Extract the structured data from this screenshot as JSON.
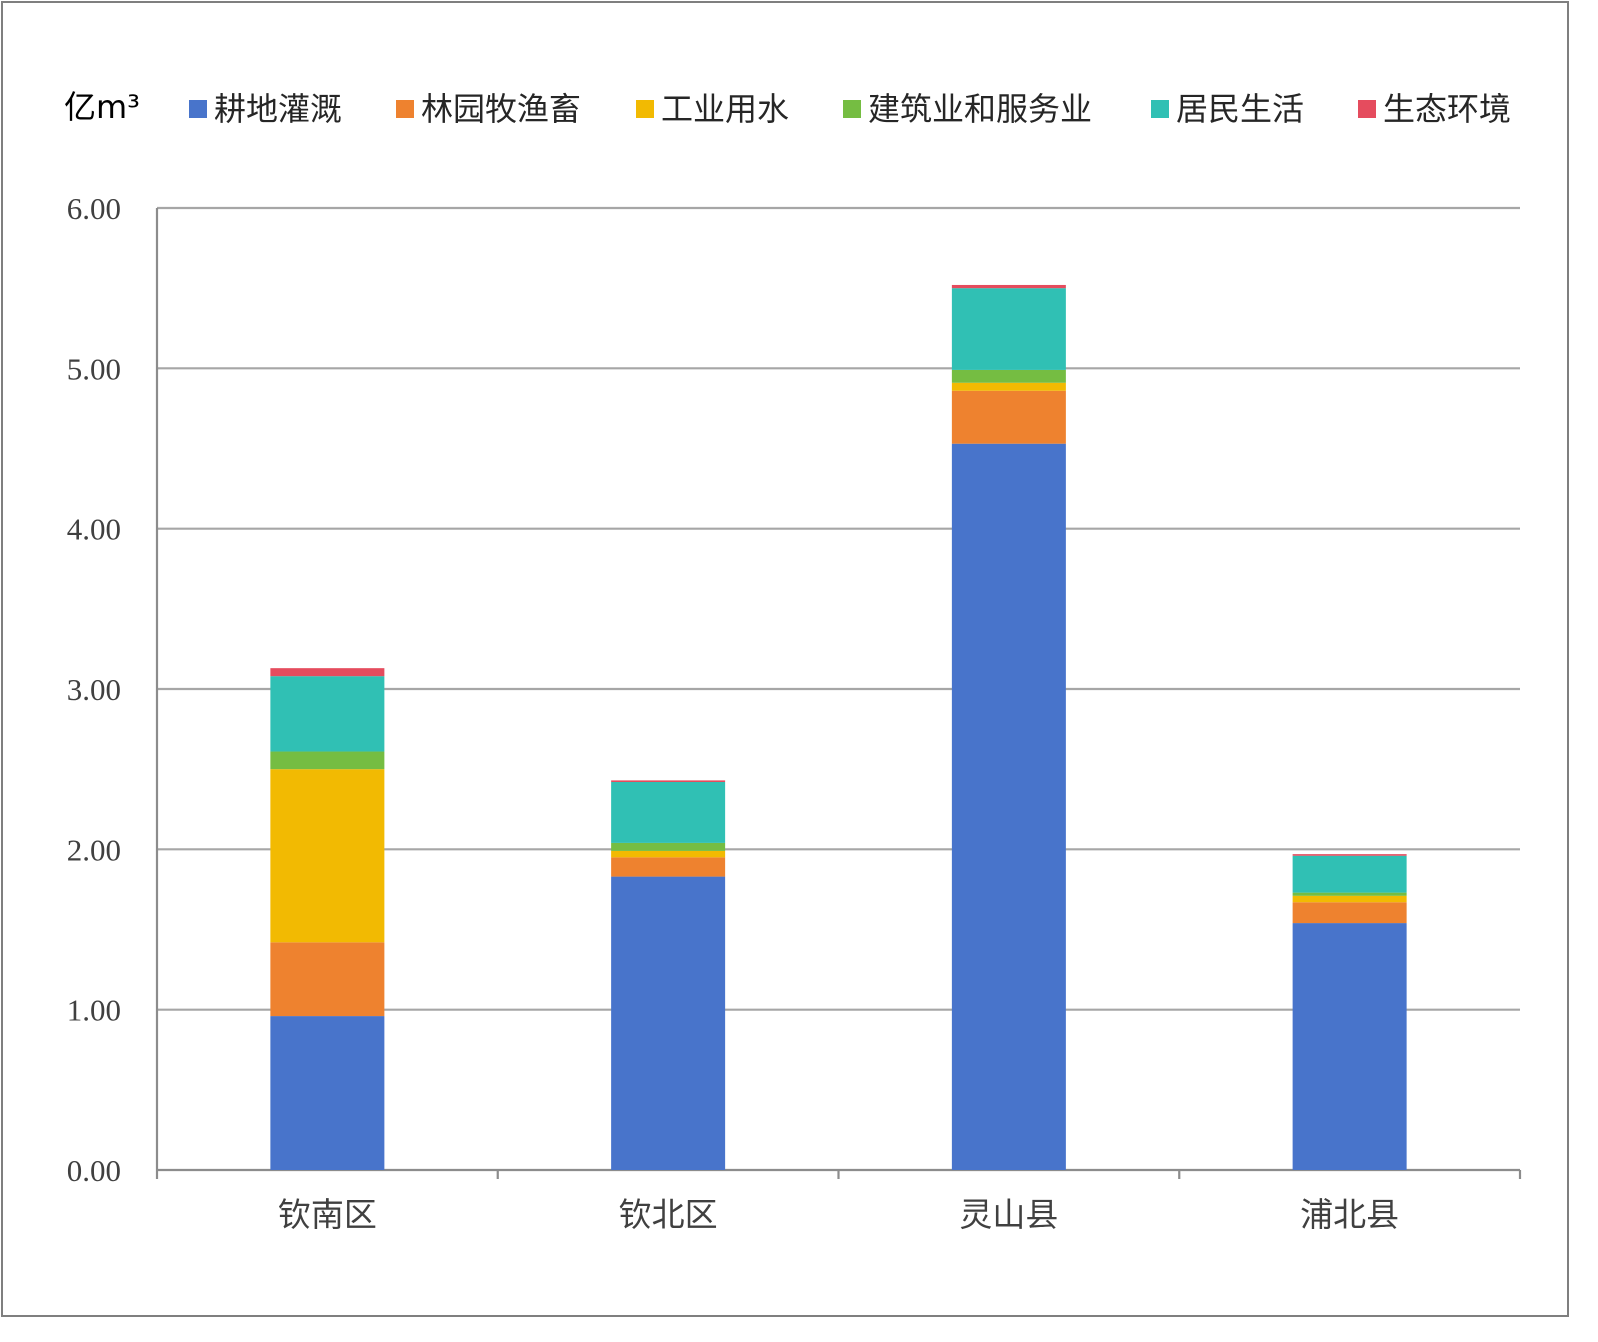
{
  "chart_data": {
    "type": "bar",
    "stacked": true,
    "unit_label": "亿m³",
    "categories": [
      "钦南区",
      "钦北区",
      "灵山县",
      "浦北县"
    ],
    "series": [
      {
        "name": "耕地灌溉",
        "color": "#4874CB",
        "values": [
          0.96,
          1.83,
          4.53,
          1.54
        ]
      },
      {
        "name": "林园牧渔畜",
        "color": "#EE822F",
        "values": [
          0.46,
          0.12,
          0.33,
          0.13
        ]
      },
      {
        "name": "工业用水",
        "color": "#F2BA02",
        "values": [
          1.08,
          0.04,
          0.05,
          0.04
        ]
      },
      {
        "name": "建筑业和服务业",
        "color": "#75BD42",
        "values": [
          0.11,
          0.05,
          0.08,
          0.02
        ]
      },
      {
        "name": "居民生活",
        "color": "#30C0B4",
        "values": [
          0.47,
          0.38,
          0.51,
          0.23
        ]
      },
      {
        "name": "生态环境",
        "color": "#E54C5E",
        "values": [
          0.05,
          0.01,
          0.02,
          0.01
        ]
      }
    ],
    "ylim": [
      0,
      6
    ],
    "yticks": [
      "0.00",
      "1.00",
      "2.00",
      "3.00",
      "4.00",
      "5.00",
      "6.00"
    ],
    "grid": true,
    "legend_position": "top"
  }
}
